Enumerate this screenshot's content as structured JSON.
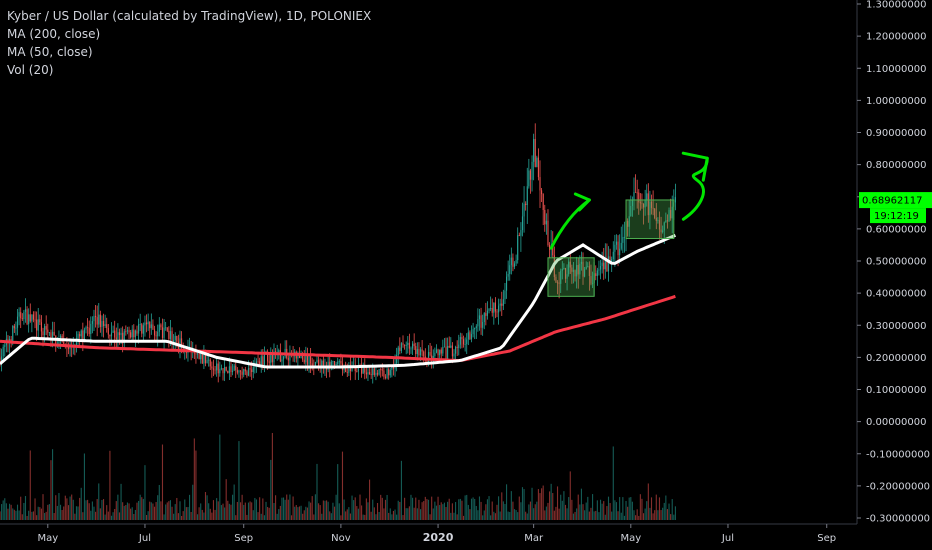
{
  "legend": {
    "title": "Kyber / US Dollar (calculated by TradingView), 1D, POLONIEX",
    "ma200": "MA (200, close)",
    "ma50": "MA (50, close)",
    "vol": "Vol (20)"
  },
  "chart_data": {
    "type": "candlestick",
    "symbol": "KNC/USD",
    "exchange": "POLONIEX",
    "interval": "1D",
    "y_axis": {
      "ticks": [
        1.3,
        1.2,
        1.1,
        1.0,
        0.9,
        0.8,
        0.7,
        0.6,
        0.5,
        0.4,
        0.3,
        0.2,
        0.1,
        0.0,
        -0.1,
        -0.2,
        -0.3
      ],
      "tick_labels": [
        "1.30000000",
        "1.20000000",
        "1.10000000",
        "1.00000000",
        "0.90000000",
        "0.80000000",
        "0.70000000",
        "0.60000000",
        "0.50000000",
        "0.40000000",
        "0.30000000",
        "0.20000000",
        "0.10000000",
        "0.00000000",
        "-0.10000000",
        "-0.20000000",
        "-0.30000000"
      ],
      "range": [
        -0.3,
        1.3
      ]
    },
    "x_axis": {
      "tick_labels": [
        "May",
        "Jul",
        "Sep",
        "Nov",
        "2020",
        "Mar",
        "May",
        "Jul",
        "Sep"
      ],
      "tick_dates": [
        "2019-05",
        "2019-07",
        "2019-09",
        "2019-11",
        "2020-01",
        "2020-03",
        "2020-05",
        "2020-07",
        "2020-09"
      ]
    },
    "price_path": [
      [
        "2019-04-01",
        0.2
      ],
      [
        "2019-04-15",
        0.34
      ],
      [
        "2019-05-01",
        0.27
      ],
      [
        "2019-05-15",
        0.23
      ],
      [
        "2019-06-01",
        0.32
      ],
      [
        "2019-06-15",
        0.26
      ],
      [
        "2019-07-01",
        0.3
      ],
      [
        "2019-07-15",
        0.27
      ],
      [
        "2019-08-01",
        0.21
      ],
      [
        "2019-08-15",
        0.17
      ],
      [
        "2019-09-01",
        0.15
      ],
      [
        "2019-09-15",
        0.2
      ],
      [
        "2019-10-01",
        0.21
      ],
      [
        "2019-10-15",
        0.18
      ],
      [
        "2019-11-01",
        0.17
      ],
      [
        "2019-11-15",
        0.16
      ],
      [
        "2019-12-01",
        0.15
      ],
      [
        "2019-12-10",
        0.25
      ],
      [
        "2019-12-25",
        0.2
      ],
      [
        "2020-01-10",
        0.22
      ],
      [
        "2020-01-25",
        0.3
      ],
      [
        "2020-02-10",
        0.38
      ],
      [
        "2020-02-20",
        0.55
      ],
      [
        "2020-03-01",
        0.85
      ],
      [
        "2020-03-08",
        0.62
      ],
      [
        "2020-03-15",
        0.45
      ],
      [
        "2020-03-25",
        0.48
      ],
      [
        "2020-04-10",
        0.45
      ],
      [
        "2020-04-25",
        0.55
      ],
      [
        "2020-05-05",
        0.72
      ],
      [
        "2020-05-20",
        0.62
      ],
      [
        "2020-05-29",
        0.68
      ]
    ],
    "ma200_path": [
      [
        "2019-04-01",
        0.25
      ],
      [
        "2019-06-01",
        0.23
      ],
      [
        "2019-08-01",
        0.22
      ],
      [
        "2019-10-01",
        0.21
      ],
      [
        "2019-12-01",
        0.2
      ],
      [
        "2020-01-15",
        0.19
      ],
      [
        "2020-02-15",
        0.22
      ],
      [
        "2020-03-15",
        0.28
      ],
      [
        "2020-04-15",
        0.32
      ],
      [
        "2020-05-29",
        0.39
      ]
    ],
    "ma50_path": [
      [
        "2019-04-01",
        0.18
      ],
      [
        "2019-04-20",
        0.26
      ],
      [
        "2019-06-01",
        0.25
      ],
      [
        "2019-07-15",
        0.25
      ],
      [
        "2019-08-15",
        0.2
      ],
      [
        "2019-09-15",
        0.17
      ],
      [
        "2019-11-01",
        0.17
      ],
      [
        "2019-12-10",
        0.175
      ],
      [
        "2020-01-15",
        0.19
      ],
      [
        "2020-02-10",
        0.23
      ],
      [
        "2020-03-01",
        0.37
      ],
      [
        "2020-03-15",
        0.5
      ],
      [
        "2020-04-01",
        0.55
      ],
      [
        "2020-04-20",
        0.49
      ],
      [
        "2020-05-05",
        0.53
      ],
      [
        "2020-05-29",
        0.58
      ]
    ],
    "last_price": "0.68962117",
    "countdown": "19:12:19",
    "annotations": [
      {
        "type": "rectangle",
        "from": [
          "2020-03-10",
          0.39
        ],
        "to": [
          "2020-04-08",
          0.51
        ]
      },
      {
        "type": "rectangle",
        "from": [
          "2020-04-28",
          0.57
        ],
        "to": [
          "2020-05-28",
          0.69
        ]
      },
      {
        "type": "arrow",
        "path": [
          [
            "2020-03-12",
            0.54
          ],
          [
            "2020-03-22",
            0.64
          ],
          [
            "2020-04-05",
            0.69
          ]
        ]
      },
      {
        "type": "arrow",
        "path": [
          [
            "2020-06-03",
            0.63
          ],
          [
            "2020-06-12",
            0.66
          ],
          [
            "2020-06-12",
            0.75
          ],
          [
            "2020-06-18",
            0.82
          ]
        ]
      }
    ],
    "colors": {
      "up": "#26a69a",
      "down": "#ef5350",
      "ma200": "#f23645",
      "ma50": "#ffffff",
      "annotation": "#00e600",
      "price_tag": "#00ff00"
    },
    "grid": false
  }
}
